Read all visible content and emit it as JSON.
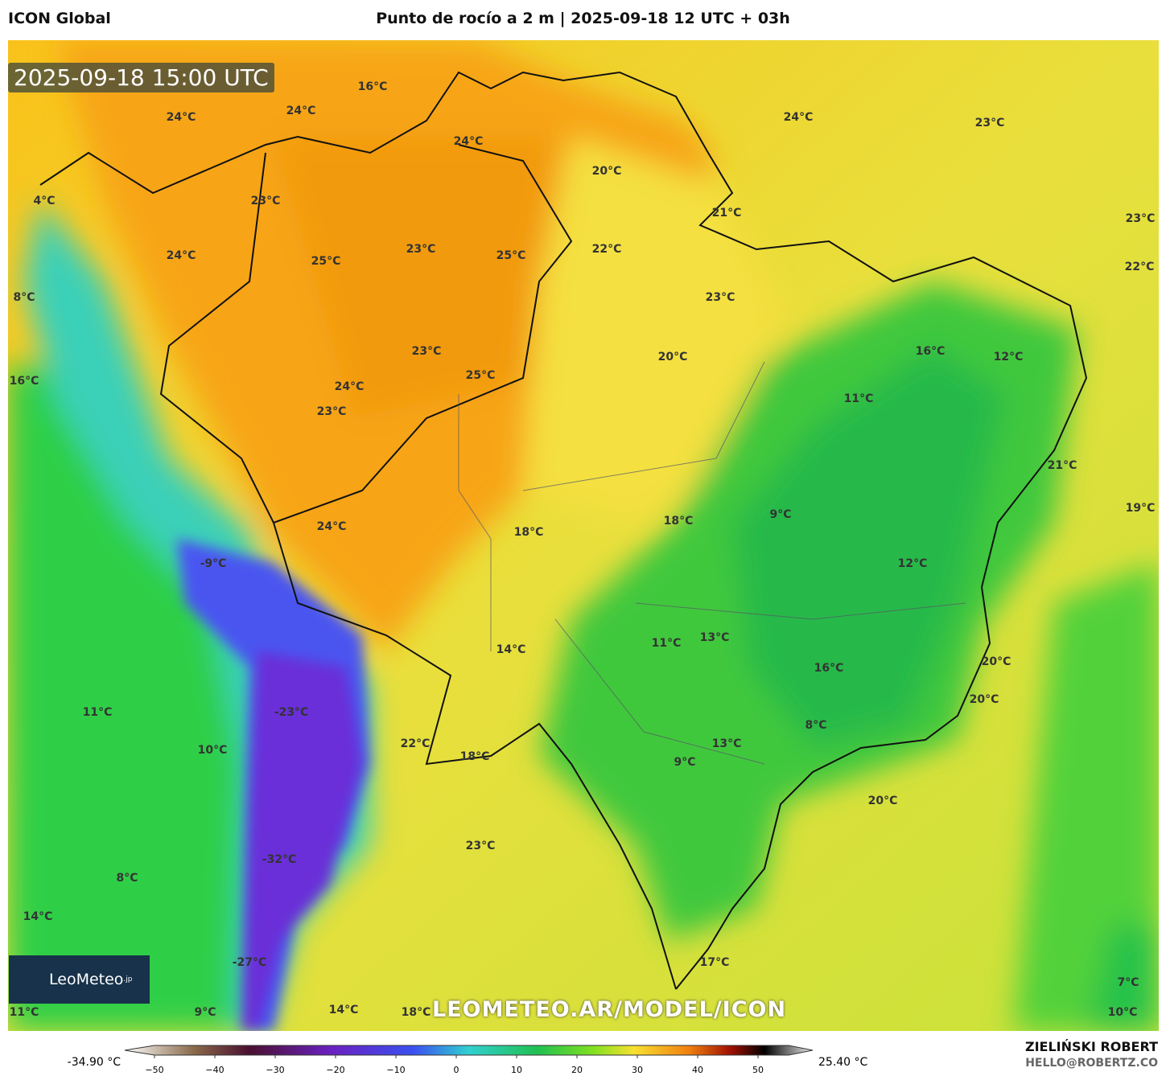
{
  "header": {
    "model": "ICON Global",
    "title": "Punto de rocío a 2 m | 2025-09-18 12 UTC + 03h",
    "valid_time": "2025-09-18 15:00 UTC"
  },
  "watermark": "LEOMETEO.AR/MODEL/ICON",
  "logo": {
    "name": "LeoMeteo",
    "suffix": ".jp"
  },
  "labels": [
    "16°C",
    "24°C",
    "24°C",
    "24°C",
    "24°C",
    "23°C",
    "20°C",
    "23°C",
    "4°C",
    "21°C",
    "23°C",
    "24°C",
    "25°C",
    "23°C",
    "25°C",
    "22°C",
    "22°C",
    "23°C",
    "8°C",
    "23°C",
    "20°C",
    "16°C",
    "12°C",
    "16°C",
    "25°C",
    "24°C",
    "11°C",
    "23°C",
    "21°C",
    "19°C",
    "9°C",
    "24°C",
    "18°C",
    "18°C",
    "-9°C",
    "12°C",
    "14°C",
    "11°C",
    "13°C",
    "16°C",
    "20°C",
    "20°C",
    "11°C",
    "-23°C",
    "8°C",
    "22°C",
    "10°C",
    "18°C",
    "13°C",
    "9°C",
    "20°C",
    "23°C",
    "-32°C",
    "8°C",
    "14°C",
    "17°C",
    "-27°C",
    "7°C",
    "14°C",
    "18°C",
    "9°C",
    "11°C",
    "10°C"
  ],
  "colorbar": {
    "min_label": "-34.90 °C",
    "max_label": "25.40 °C",
    "ticks": [
      "−50",
      "−40",
      "−30",
      "−20",
      "−10",
      "0",
      "10",
      "20",
      "30",
      "40",
      "50"
    ]
  },
  "footer": {
    "author": "ZIELIŃSKI ROBERT",
    "contact": "HELLO@ROBERTZ.CO"
  }
}
